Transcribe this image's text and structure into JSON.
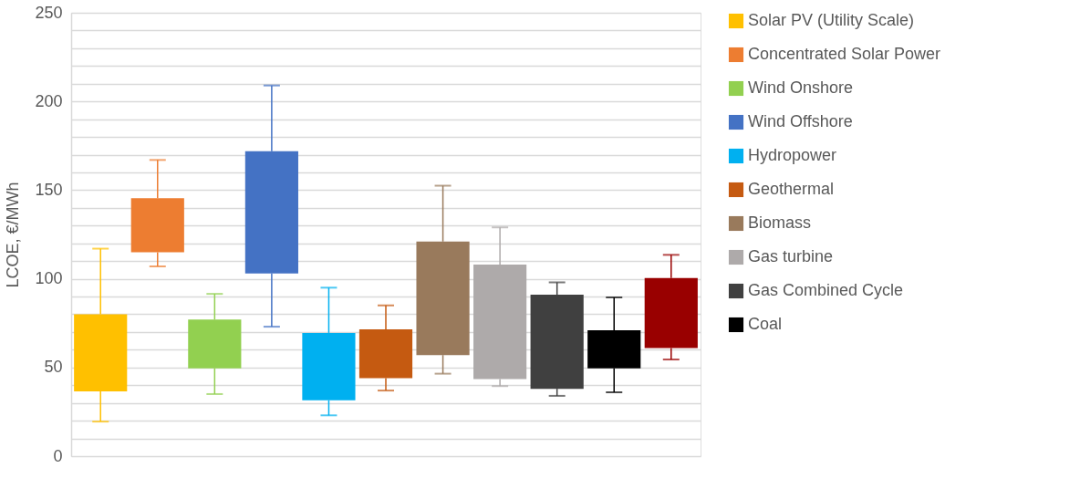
{
  "chart_data": {
    "type": "box",
    "ylabel": "LCOE, €/MWh",
    "categories": [
      null,
      null,
      null,
      null,
      null,
      null,
      null,
      null,
      null,
      null,
      null
    ],
    "ylim": [
      0,
      250
    ],
    "yticks": [
      0,
      {
        "value": 10,
        "label": null
      },
      {
        "value": 20,
        "label": null
      },
      {
        "value": 30,
        "label": null
      },
      {
        "value": 40,
        "label": null
      },
      50,
      {
        "value": 60,
        "label": null
      },
      {
        "value": 70,
        "label": null
      },
      {
        "value": 80,
        "label": null
      },
      {
        "value": 90,
        "label": null
      },
      100,
      {
        "value": 110,
        "label": null
      },
      {
        "value": 120,
        "label": null
      },
      {
        "value": 130,
        "label": null
      },
      {
        "value": 140,
        "label": null
      },
      150,
      {
        "value": 160,
        "label": null
      },
      {
        "value": 170,
        "label": null
      },
      {
        "value": 180,
        "label": null
      },
      {
        "value": 190,
        "label": null
      },
      200,
      {
        "value": 210,
        "label": null
      },
      {
        "value": 220,
        "label": null
      },
      {
        "value": 230,
        "label": null
      },
      {
        "value": 240,
        "label": null
      },
      250
    ],
    "grid": "y",
    "legend": "right",
    "series": [
      {
        "name": "Solar PV (Utility Scale)",
        "color": "#ffc000",
        "boxes": [
          {
            "low": 19.5,
            "q1": 36.5,
            "q3": 80,
            "high": 117
          },
          null,
          null,
          null,
          null,
          null,
          null,
          null,
          null,
          null,
          null
        ]
      },
      {
        "name": "Concentrated Solar Power",
        "color": "#ed7d31",
        "boxes": [
          null,
          {
            "low": 107,
            "q1": 115,
            "q3": 145.5,
            "high": 167
          },
          null,
          null,
          null,
          null,
          null,
          null,
          null,
          null,
          null
        ]
      },
      {
        "name": "Wind Onshore",
        "color": "#92d050",
        "boxes": [
          null,
          null,
          {
            "low": 35,
            "q1": 49.5,
            "q3": 77,
            "high": 91.5
          },
          null,
          null,
          null,
          null,
          null,
          null,
          null,
          null
        ]
      },
      {
        "name": "Wind Offshore",
        "color": "#4472c4",
        "boxes": [
          null,
          null,
          null,
          {
            "low": 73,
            "q1": 103,
            "q3": 172,
            "high": 209
          },
          null,
          null,
          null,
          null,
          null,
          null,
          null
        ]
      },
      {
        "name": "Hydropower",
        "color": "#00b0f0",
        "boxes": [
          null,
          null,
          null,
          null,
          {
            "low": 23,
            "q1": 31.5,
            "q3": 69.5,
            "high": 95
          },
          null,
          null,
          null,
          null,
          null,
          null
        ]
      },
      {
        "name": "Geothermal",
        "color": "#c55a11",
        "boxes": [
          null,
          null,
          null,
          null,
          null,
          {
            "low": 37,
            "q1": 44,
            "q3": 71.5,
            "high": 85
          },
          null,
          null,
          null,
          null,
          null
        ]
      },
      {
        "name": "Biomass",
        "color": "#997a5c",
        "boxes": [
          null,
          null,
          null,
          null,
          null,
          null,
          {
            "low": 46.5,
            "q1": 57,
            "q3": 121,
            "high": 152.5
          },
          null,
          null,
          null,
          null
        ]
      },
      {
        "name": "Gas turbine",
        "color": "#aeaaaa",
        "boxes": [
          null,
          null,
          null,
          null,
          null,
          null,
          null,
          {
            "low": 39.5,
            "q1": 43.5,
            "q3": 108,
            "high": 129
          },
          null,
          null,
          null
        ]
      },
      {
        "name": "Gas Combined Cycle",
        "color": "#404040",
        "boxes": [
          null,
          null,
          null,
          null,
          null,
          null,
          null,
          null,
          {
            "low": 34,
            "q1": 38,
            "q3": 91,
            "high": 98
          },
          null,
          null
        ]
      },
      {
        "name": "Coal",
        "color": "#000000",
        "boxes": [
          null,
          null,
          null,
          null,
          null,
          null,
          null,
          null,
          null,
          {
            "low": 36,
            "q1": 49.5,
            "q3": 71,
            "high": 89.5
          },
          null
        ]
      },
      {
        "color": "#990000",
        "boxes": [
          null,
          null,
          null,
          null,
          null,
          null,
          null,
          null,
          null,
          null,
          {
            "low": 54.5,
            "q1": 61,
            "q3": 100.5,
            "high": 113.5
          }
        ]
      }
    ]
  }
}
